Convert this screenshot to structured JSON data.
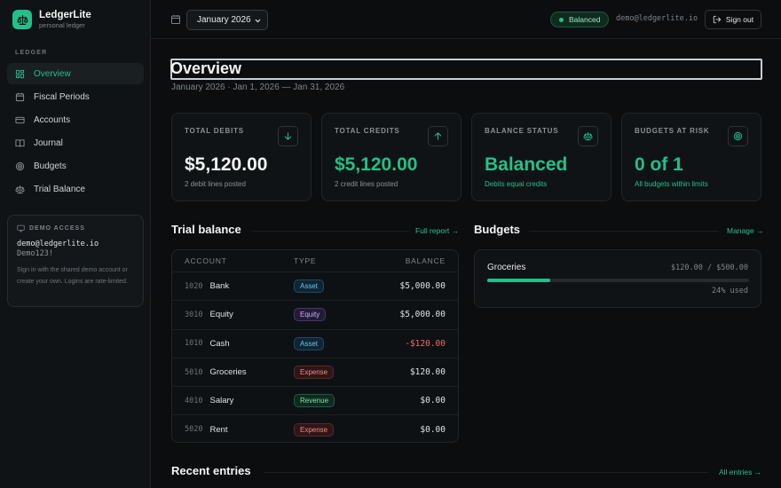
{
  "colors": {
    "accent": "#22c08a",
    "negative": "#ef6b6b"
  },
  "brand": {
    "name": "LedgerLite",
    "subtitle": "personal ledger",
    "icon": "scale-icon"
  },
  "sidebar": {
    "section_label": "LEDGER",
    "items": [
      {
        "label": "Overview",
        "icon": "grid-icon",
        "active": true
      },
      {
        "label": "Fiscal Periods",
        "icon": "calendar-icon",
        "active": false
      },
      {
        "label": "Accounts",
        "icon": "card-icon",
        "active": false
      },
      {
        "label": "Journal",
        "icon": "book-icon",
        "active": false
      },
      {
        "label": "Budgets",
        "icon": "target-icon",
        "active": false
      },
      {
        "label": "Trial Balance",
        "icon": "scale-icon",
        "active": false
      }
    ],
    "demo": {
      "title": "DEMO ACCESS",
      "email": "demo@ledgerlite.io",
      "password": "Demo123!",
      "description": "Sign in with the shared demo account or create your own. Logins are rate-limited."
    }
  },
  "topbar": {
    "period": "January 2026",
    "status": "Balanced",
    "user_email": "demo@ledgerlite.io",
    "signout_label": "Sign out"
  },
  "main": {
    "title": "Overview",
    "subtitle": "January 2026 · Jan 1, 2026 — Jan 31, 2026",
    "stats": [
      {
        "label": "TOTAL DEBITS",
        "value": "$5,120.00",
        "note": "2 debit lines posted",
        "icon": "arrow-down-icon",
        "value_color": "#f2f4f5",
        "note_color": "#8a9196"
      },
      {
        "label": "TOTAL CREDITS",
        "value": "$5,120.00",
        "note": "2 credit lines posted",
        "icon": "arrow-up-icon",
        "value_color": "#22c08a",
        "note_color": "#8a9196"
      },
      {
        "label": "BALANCE STATUS",
        "value": "Balanced",
        "note": "Debits equal credits",
        "icon": "scale-icon",
        "value_color": "#22c08a",
        "note_color": "#22c08a"
      },
      {
        "label": "BUDGETS AT RISK",
        "value": "0 of 1",
        "note": "All budgets within limits",
        "icon": "target-icon",
        "value_color": "#22c08a",
        "note_color": "#22c08a"
      }
    ],
    "trial_balance": {
      "title": "Trial balance",
      "link": "Full report →",
      "headers": {
        "account": "ACCOUNT",
        "type": "TYPE",
        "balance": "BALANCE"
      },
      "rows": [
        {
          "code": "1020",
          "name": "Bank",
          "type": "Asset",
          "balance": "$5,000.00",
          "negative": false
        },
        {
          "code": "3010",
          "name": "Equity",
          "type": "Equity",
          "balance": "$5,000.00",
          "negative": false
        },
        {
          "code": "1010",
          "name": "Cash",
          "type": "Asset",
          "balance": "-$120.00",
          "negative": true
        },
        {
          "code": "5010",
          "name": "Groceries",
          "type": "Expense",
          "balance": "$120.00",
          "negative": false
        },
        {
          "code": "4010",
          "name": "Salary",
          "type": "Revenue",
          "balance": "$0.00",
          "negative": false
        },
        {
          "code": "5020",
          "name": "Rent",
          "type": "Expense",
          "balance": "$0.00",
          "negative": false
        }
      ]
    },
    "budgets": {
      "title": "Budgets",
      "link": "Manage →",
      "items": [
        {
          "name": "Groceries",
          "amount": "$120.00 / $500.00",
          "used_label": "24% used",
          "used_fraction": 0.24
        }
      ]
    },
    "recent": {
      "title": "Recent entries",
      "link": "All entries →"
    }
  }
}
